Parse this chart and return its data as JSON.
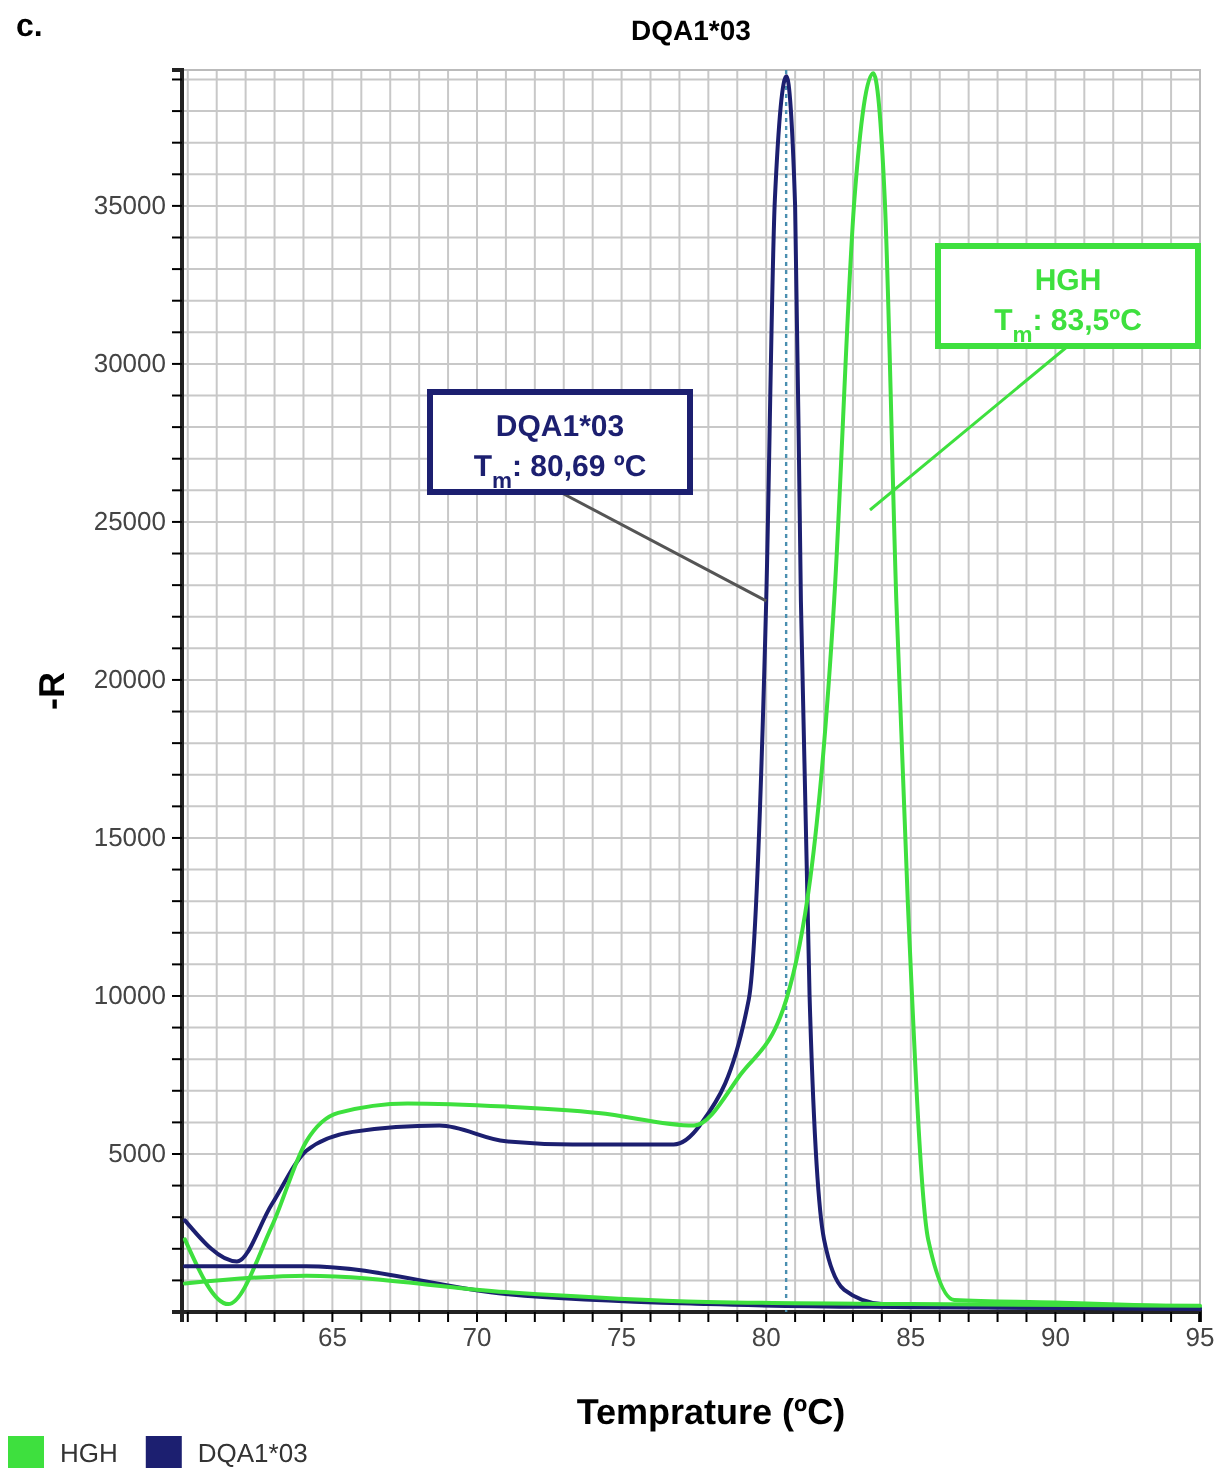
{
  "chart_data": {
    "type": "line",
    "title": "DQA1*03",
    "xlabel": "Temprature (ºC)",
    "ylabel": "-R",
    "annotations": [
      "c.",
      {
        "text": "DQA1*03\nT$_{m}$: 80,69 ºC",
        "x": 80,
        "y": 22500
      },
      "HGH\nT$_{m}$: 83,5ºC"
    ],
    "xlim": [
      59.8,
      95
    ],
    "ylim": [
      0,
      39300
    ],
    "xticks": [
      {
        "value": 60,
        "label": null
      },
      {
        "value": 61,
        "label": null
      },
      {
        "value": 62,
        "label": null
      },
      {
        "value": 63,
        "label": null
      },
      {
        "value": 64,
        "label": null
      },
      65,
      {
        "value": 66,
        "label": null
      },
      {
        "value": 67,
        "label": null
      },
      {
        "value": 68,
        "label": null
      },
      {
        "value": 69,
        "label": null
      },
      70,
      {
        "value": 71,
        "label": null
      },
      {
        "value": 72,
        "label": null
      },
      {
        "value": 73,
        "label": null
      },
      {
        "value": 74,
        "label": null
      },
      75,
      {
        "value": 76,
        "label": null
      },
      {
        "value": 77,
        "label": null
      },
      {
        "value": 78,
        "label": null
      },
      {
        "value": 79,
        "label": null
      },
      80,
      {
        "value": 81,
        "label": null
      },
      {
        "value": 82,
        "label": null
      },
      {
        "value": 83,
        "label": null
      },
      {
        "value": 84,
        "label": null
      },
      85,
      {
        "value": 86,
        "label": null
      },
      {
        "value": 87,
        "label": null
      },
      {
        "value": 88,
        "label": null
      },
      {
        "value": 89,
        "label": null
      },
      90,
      {
        "value": 91,
        "label": null
      },
      {
        "value": 92,
        "label": null
      },
      {
        "value": 93,
        "label": null
      },
      {
        "value": 94,
        "label": null
      },
      95
    ],
    "yticks": [
      {
        "value": 1000,
        "label": null
      },
      {
        "value": 2000,
        "label": null
      },
      {
        "value": 3000,
        "label": null
      },
      {
        "value": 4000,
        "label": null
      },
      5000,
      {
        "value": 6000,
        "label": null
      },
      {
        "value": 7000,
        "label": null
      },
      {
        "value": 8000,
        "label": null
      },
      {
        "value": 9000,
        "label": null
      },
      10000,
      {
        "value": 11000,
        "label": null
      },
      {
        "value": 12000,
        "label": null
      },
      {
        "value": 13000,
        "label": null
      },
      {
        "value": 14000,
        "label": null
      },
      15000,
      {
        "value": 16000,
        "label": null
      },
      {
        "value": 17000,
        "label": null
      },
      {
        "value": 18000,
        "label": null
      },
      {
        "value": 19000,
        "label": null
      },
      20000,
      {
        "value": 21000,
        "label": null
      },
      {
        "value": 22000,
        "label": null
      },
      {
        "value": 23000,
        "label": null
      },
      {
        "value": 24000,
        "label": null
      },
      25000,
      {
        "value": 26000,
        "label": null
      },
      {
        "value": 27000,
        "label": null
      },
      {
        "value": 28000,
        "label": null
      },
      {
        "value": 29000,
        "label": null
      },
      30000,
      {
        "value": 31000,
        "label": null
      },
      {
        "value": 32000,
        "label": null
      },
      {
        "value": 33000,
        "label": null
      },
      {
        "value": 34000,
        "label": null
      },
      35000,
      {
        "value": 36000,
        "label": null
      },
      {
        "value": 37000,
        "label": null
      },
      {
        "value": 38000,
        "label": null
      },
      {
        "value": 39000,
        "label": null
      }
    ],
    "grid": true,
    "legend": "bottom",
    "line_style": "solid",
    "marker": "none",
    "ref_lines": [
      {
        "axis": "x",
        "value": 80.69,
        "color": "#4a8fb0",
        "line_style": "dotted"
      }
    ],
    "series": [
      {
        "name": "DQA1*03",
        "color": "#1c1f70",
        "x": [
          59.9,
          61.7,
          62.9,
          64.1,
          65.7,
          68.7,
          71,
          73.3,
          76.8,
          77.7,
          79.4,
          80,
          80.3,
          80.7,
          81,
          81.2,
          81.5,
          82,
          82.7,
          84,
          88,
          95
        ],
        "values": [
          2900,
          1600,
          3400,
          5100,
          5700,
          5900,
          5400,
          5300,
          5300,
          5900,
          9900,
          22500,
          35200,
          39100,
          35000,
          22500,
          10000,
          2300,
          700,
          250,
          150,
          100
        ]
      },
      {
        "name": "HGH",
        "color": "#3ee03e",
        "x": [
          59.9,
          61.4,
          62.9,
          64.1,
          65.2,
          67.6,
          71,
          74.2,
          77.5,
          79.1,
          80.7,
          82.35,
          83.05,
          83.7,
          84.1,
          84.5,
          84.9,
          85.6,
          86.5,
          90,
          95
        ],
        "values": [
          2300,
          250,
          2700,
          5400,
          6300,
          6600,
          6500,
          6300,
          5900,
          7500,
          9900,
          22500,
          35200,
          39200,
          35200,
          22500,
          12900,
          2300,
          380,
          300,
          150
        ]
      },
      {
        "color": "#1c1f70",
        "x": [
          59.9,
          64.1,
          71,
          77.95,
          85,
          95
        ],
        "values": [
          1450,
          1450,
          570,
          250,
          150,
          100
        ]
      },
      {
        "color": "#3ee03e",
        "x": [
          59.9,
          64.1,
          71,
          77.95,
          85,
          95
        ],
        "values": [
          900,
          1150,
          630,
          320,
          250,
          200
        ]
      }
    ]
  }
}
